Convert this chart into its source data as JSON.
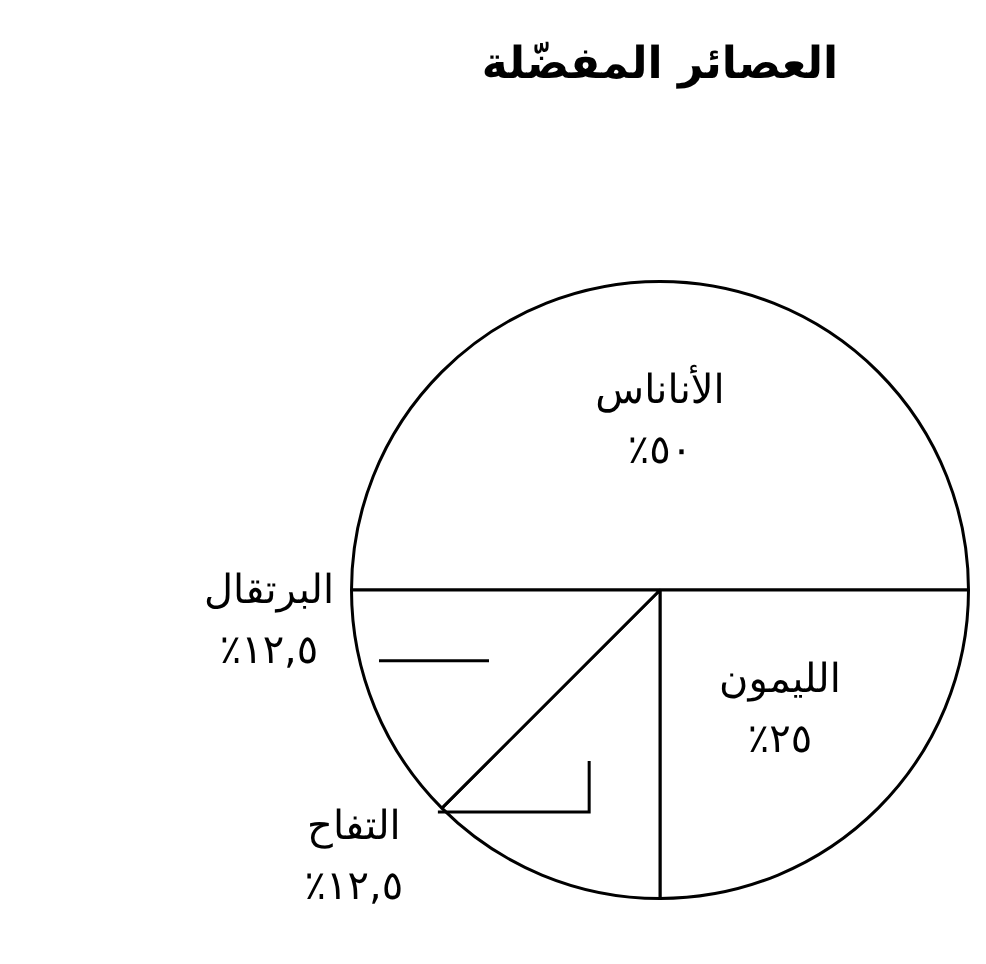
{
  "chart_data": {
    "type": "pie",
    "title": "العصائر المفضّلة",
    "categories": [
      "الأناناس",
      "الليمون",
      "التفاح",
      "البرتقال"
    ],
    "values": [
      50,
      25,
      12.5,
      12.5
    ],
    "colors": [
      "#ffffff",
      "#ffffff",
      "#ffffff",
      "#ffffff"
    ],
    "value_labels": [
      "٥٠٪",
      "٢٥٪",
      "١٢,٥٪",
      "١٢,٥٪"
    ],
    "legend": false
  }
}
